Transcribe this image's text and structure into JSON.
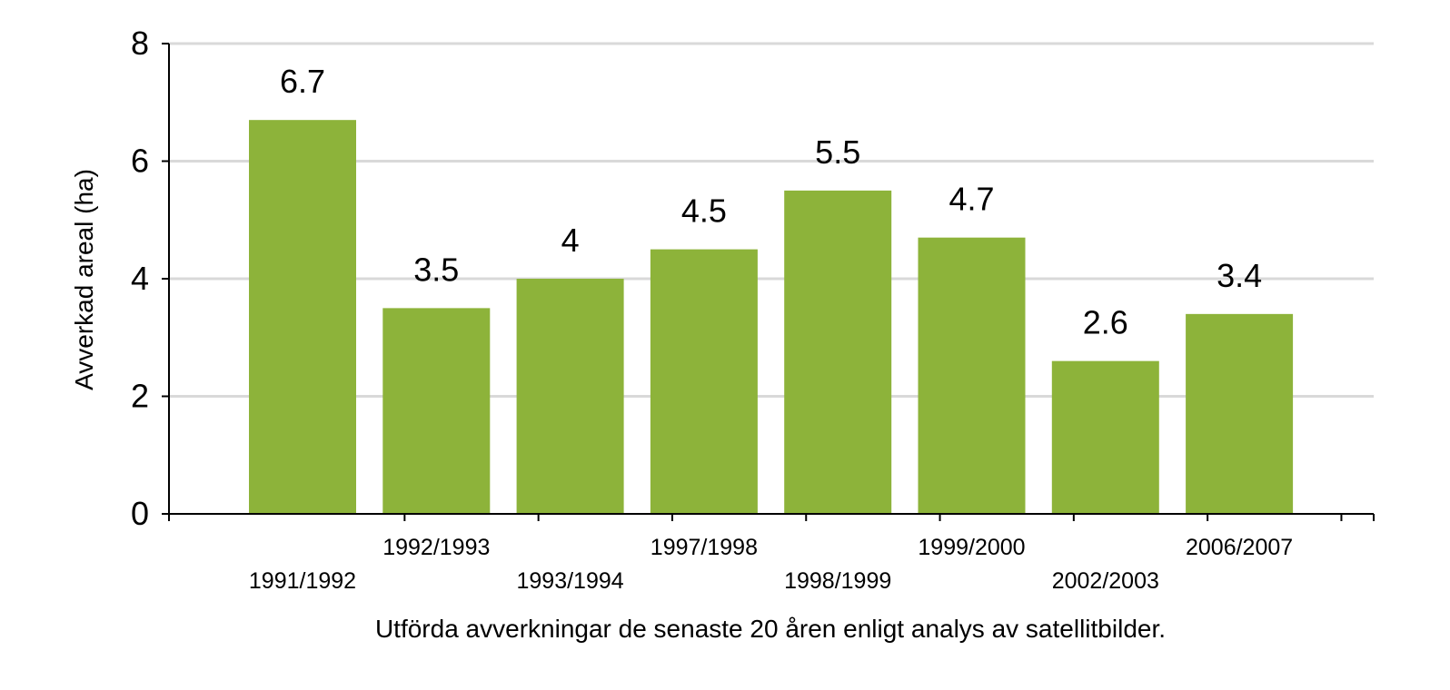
{
  "chart_data": {
    "type": "bar",
    "categories": [
      "1991/1992",
      "1992/1993",
      "1993/1994",
      "1997/1998",
      "1998/1999",
      "1999/2000",
      "2002/2003",
      "2006/2007"
    ],
    "values": [
      6.7,
      3.5,
      4,
      4.5,
      5.5,
      4.7,
      2.6,
      3.4
    ],
    "data_labels": [
      "6.7",
      "3.5",
      "4",
      "4.5",
      "5.5",
      "4.7",
      "2.6",
      "3.4"
    ],
    "ylabel": "Avverkad areal (ha)",
    "xlabel": "Utförda avverkningar de senaste 20 åren enligt analys av satellitbilder.",
    "ylim": [
      0,
      8
    ],
    "yticks": [
      0,
      2,
      4,
      6,
      8
    ],
    "grid": true,
    "legend": "none",
    "bar_color": "#8db33a",
    "grid_color": "#d9d9d9"
  }
}
